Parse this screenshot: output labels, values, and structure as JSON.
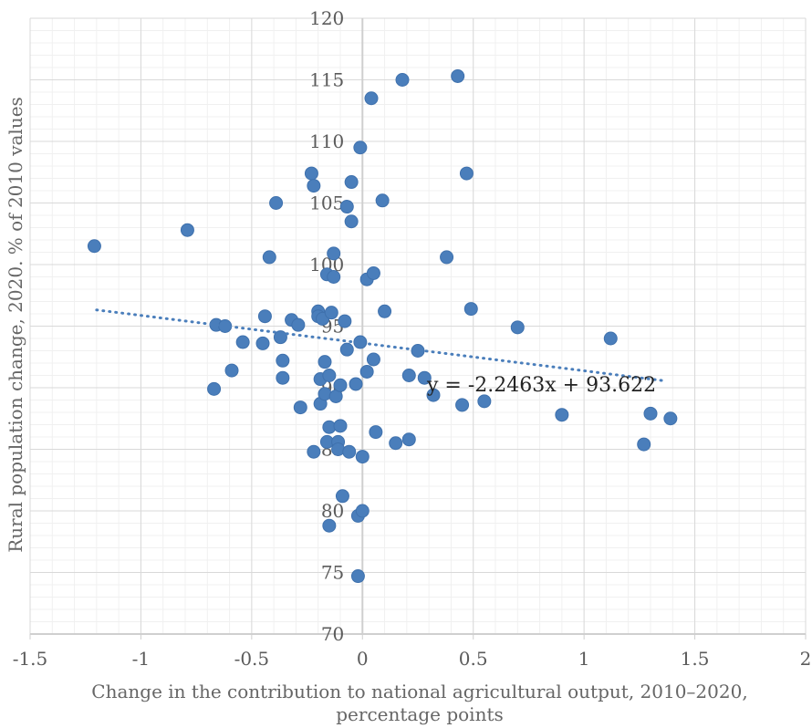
{
  "chart_data": {
    "type": "scatter",
    "title": "",
    "xlabel_lines": [
      "Change in the contribution to national agricultural output, 2010–2020,",
      "percentage points"
    ],
    "ylabel": "Rural population change, 2020. % of 2010 values",
    "xlim": [
      -1.5,
      2
    ],
    "ylim": [
      70,
      120
    ],
    "xticks": [
      -1.5,
      -1,
      -0.5,
      0,
      0.5,
      1,
      1.5,
      2
    ],
    "yticks": [
      70,
      75,
      80,
      85,
      90,
      95,
      100,
      105,
      110,
      115,
      120
    ],
    "xtick_labels": [
      "-1.5",
      "-1",
      "-0.5",
      "0",
      "0.5",
      "1",
      "1.5",
      "2"
    ],
    "ytick_labels": [
      "70",
      "75",
      "80",
      "85",
      "90",
      "95",
      "100",
      "105",
      "110",
      "115",
      "120"
    ],
    "grid": true,
    "minor_grid": true,
    "marker_color": "#4a7ebb",
    "trendline": {
      "type": "linear",
      "slope": -2.2463,
      "intercept": 93.622,
      "x_range": [
        -1.2,
        1.37
      ],
      "color": "#4a7ebb",
      "style": "dotted",
      "label": "y = -2.2463x + 93.622"
    },
    "series": [
      {
        "points": [
          [
            -1.21,
            101.5
          ],
          [
            -0.79,
            102.8
          ],
          [
            -0.67,
            89.9
          ],
          [
            -0.66,
            95.1
          ],
          [
            -0.62,
            95.0
          ],
          [
            -0.59,
            91.4
          ],
          [
            -0.54,
            93.7
          ],
          [
            -0.45,
            93.6
          ],
          [
            -0.44,
            95.8
          ],
          [
            -0.42,
            100.6
          ],
          [
            -0.39,
            105.0
          ],
          [
            -0.37,
            94.1
          ],
          [
            -0.36,
            92.2
          ],
          [
            -0.36,
            90.8
          ],
          [
            -0.32,
            95.5
          ],
          [
            -0.29,
            95.1
          ],
          [
            -0.28,
            88.4
          ],
          [
            -0.23,
            107.4
          ],
          [
            -0.22,
            106.4
          ],
          [
            -0.22,
            84.8
          ],
          [
            -0.2,
            96.2
          ],
          [
            -0.2,
            95.8
          ],
          [
            -0.19,
            88.7
          ],
          [
            -0.19,
            90.7
          ],
          [
            -0.18,
            95.6
          ],
          [
            -0.17,
            89.5
          ],
          [
            -0.17,
            92.1
          ],
          [
            -0.16,
            99.2
          ],
          [
            -0.16,
            85.6
          ],
          [
            -0.15,
            91.0
          ],
          [
            -0.15,
            78.8
          ],
          [
            -0.15,
            86.8
          ],
          [
            -0.14,
            96.1
          ],
          [
            -0.13,
            99.0
          ],
          [
            -0.13,
            100.9
          ],
          [
            -0.12,
            89.3
          ],
          [
            -0.11,
            85.6
          ],
          [
            -0.11,
            85.0
          ],
          [
            -0.1,
            90.2
          ],
          [
            -0.1,
            86.9
          ],
          [
            -0.09,
            81.2
          ],
          [
            -0.08,
            95.4
          ],
          [
            -0.07,
            93.1
          ],
          [
            -0.07,
            104.7
          ],
          [
            -0.06,
            84.8
          ],
          [
            -0.05,
            106.7
          ],
          [
            -0.05,
            103.5
          ],
          [
            -0.03,
            90.3
          ],
          [
            -0.02,
            74.7
          ],
          [
            -0.02,
            79.6
          ],
          [
            -0.01,
            109.5
          ],
          [
            -0.01,
            93.7
          ],
          [
            0.0,
            80.0
          ],
          [
            0.0,
            84.4
          ],
          [
            0.02,
            98.8
          ],
          [
            0.02,
            91.3
          ],
          [
            0.04,
            113.5
          ],
          [
            0.05,
            99.3
          ],
          [
            0.05,
            92.3
          ],
          [
            0.06,
            86.4
          ],
          [
            0.09,
            105.2
          ],
          [
            0.1,
            96.2
          ],
          [
            0.15,
            85.5
          ],
          [
            0.18,
            115.0
          ],
          [
            0.21,
            85.8
          ],
          [
            0.21,
            91.0
          ],
          [
            0.25,
            93.0
          ],
          [
            0.28,
            90.8
          ],
          [
            0.32,
            89.4
          ],
          [
            0.38,
            100.6
          ],
          [
            0.43,
            115.3
          ],
          [
            0.45,
            88.6
          ],
          [
            0.47,
            107.4
          ],
          [
            0.49,
            96.4
          ],
          [
            0.55,
            88.9
          ],
          [
            0.7,
            94.9
          ],
          [
            0.9,
            87.8
          ],
          [
            1.12,
            94.0
          ],
          [
            1.27,
            85.4
          ],
          [
            1.3,
            87.9
          ],
          [
            1.39,
            87.5
          ]
        ]
      }
    ]
  }
}
